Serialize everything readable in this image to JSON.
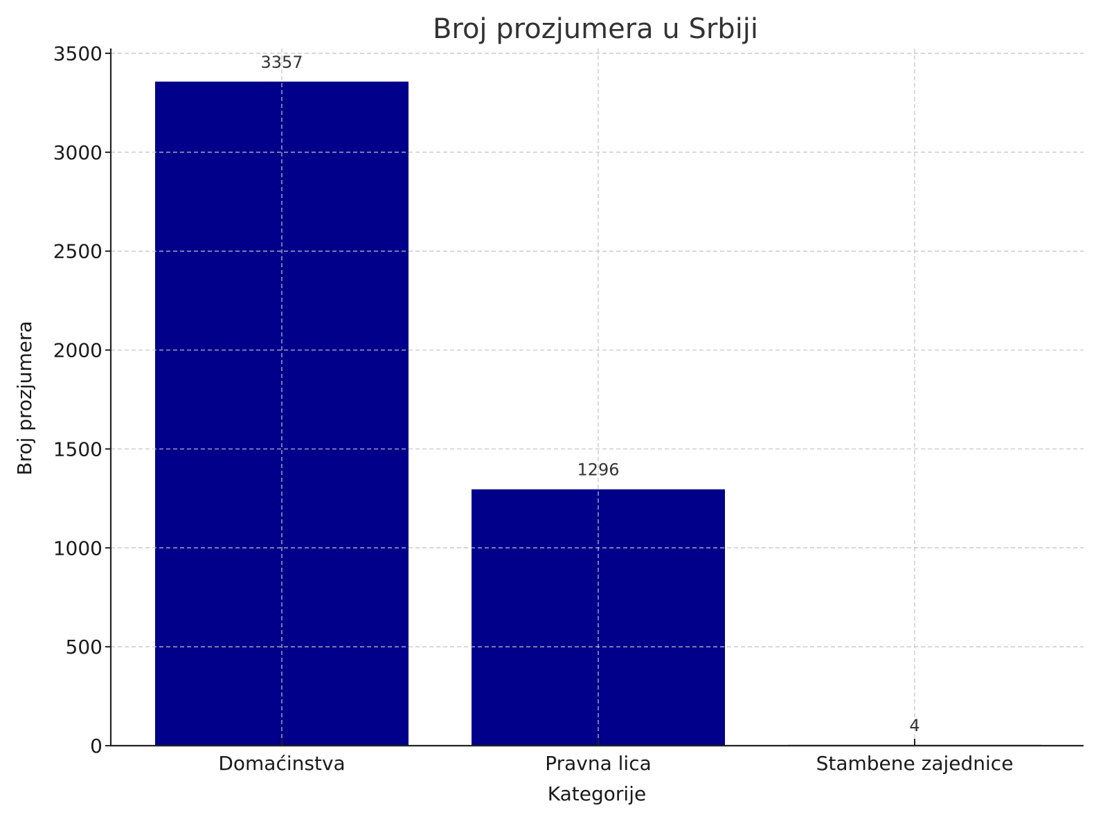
{
  "chart_data": {
    "type": "bar",
    "title": "Broj prozjumera u Srbiji",
    "xlabel": "Kategorije",
    "ylabel": "Broj prozjumera",
    "categories": [
      "Domaćinstva",
      "Pravna lica",
      "Stambene zajednice"
    ],
    "values": [
      3357,
      1296,
      4
    ],
    "data_labels": [
      "3357",
      "1296",
      "4"
    ],
    "ylim": [
      0,
      3500
    ],
    "yticks": [
      0,
      500,
      1000,
      1500,
      2000,
      2500,
      3000,
      3500
    ],
    "ytick_labels": [
      "0",
      "500",
      "1000",
      "1500",
      "2000",
      "2500",
      "3000",
      "3500"
    ],
    "grid": true,
    "bar_color": "#00008b"
  }
}
